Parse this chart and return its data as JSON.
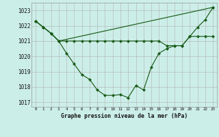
{
  "title": "Graphe pression niveau de la mer (hPa)",
  "bg_color": "#cceee8",
  "grid_color": "#b0b0b0",
  "line_color": "#1a5c1a",
  "marker_color": "#1a5c1a",
  "xlim": [
    -0.5,
    23.5
  ],
  "ylim": [
    1016.7,
    1023.5
  ],
  "yticks": [
    1017,
    1018,
    1019,
    1020,
    1021,
    1022,
    1023
  ],
  "xtick_labels": [
    "0",
    "1",
    "2",
    "3",
    "4",
    "5",
    "6",
    "7",
    "8",
    "9",
    "10",
    "11",
    "12",
    "13",
    "14",
    "15",
    "16",
    "17",
    "18",
    "19",
    "20",
    "21",
    "22",
    "23"
  ],
  "series1_x": [
    0,
    1,
    2,
    3,
    23
  ],
  "series1_y": [
    1022.3,
    1021.9,
    1021.5,
    1021.0,
    1023.2
  ],
  "series2_x": [
    0,
    1,
    2,
    3,
    4,
    5,
    6,
    7,
    8,
    9,
    10,
    11,
    12,
    13,
    14,
    15,
    16,
    17,
    18,
    19,
    20,
    21,
    22,
    23
  ],
  "series2_y": [
    1022.3,
    1021.9,
    1021.5,
    1021.0,
    1021.0,
    1021.0,
    1021.0,
    1021.0,
    1021.0,
    1021.0,
    1021.0,
    1021.0,
    1021.0,
    1021.0,
    1021.0,
    1021.0,
    1021.0,
    1020.7,
    1020.7,
    1020.7,
    1021.3,
    1021.3,
    1021.3,
    1021.3
  ],
  "series3_x": [
    0,
    1,
    2,
    3,
    4,
    5,
    6,
    7,
    8,
    9,
    10,
    11,
    12,
    13,
    14,
    15,
    16,
    17,
    18,
    19,
    20,
    21,
    22,
    23
  ],
  "series3_y": [
    1022.3,
    1021.9,
    1021.5,
    1021.0,
    1020.2,
    1019.5,
    1018.8,
    1018.5,
    1017.8,
    1017.45,
    1017.45,
    1017.5,
    1017.3,
    1018.1,
    1017.8,
    1019.3,
    1020.2,
    1020.5,
    1020.7,
    1020.7,
    1021.3,
    1021.9,
    1022.4,
    1023.2
  ]
}
